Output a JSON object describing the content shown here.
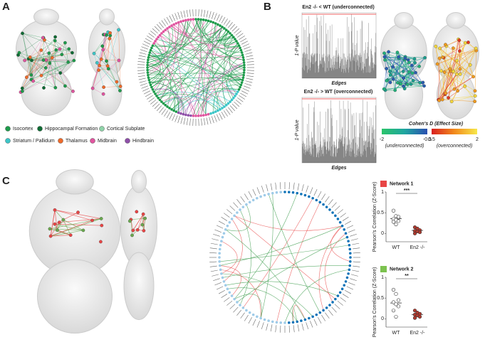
{
  "panel_a": {
    "label": "A",
    "legend": [
      {
        "name": "Isocortex",
        "color": "#1e9b4b"
      },
      {
        "name": "Hippocampal Formation",
        "color": "#0f6b34"
      },
      {
        "name": "Cortical Subplate",
        "color": "#8fd3a8"
      },
      {
        "name": "Striatum / Pallidum",
        "color": "#3cc6c8"
      },
      {
        "name": "Thalamus",
        "color": "#ef6a2a"
      },
      {
        "name": "Midbrain",
        "color": "#e0559f"
      },
      {
        "name": "Hindbrain",
        "color": "#8e4fa8"
      }
    ]
  },
  "panel_b": {
    "label": "B",
    "plots": [
      {
        "title": "En2 -/- < WT (underconnected)",
        "y_label": "1-P value",
        "x_label": "Edges"
      },
      {
        "title": "En2 -/- > WT (overconnected)",
        "y_label": "1-P value",
        "x_label": "Edges"
      }
    ],
    "colorbar": {
      "title": "Cohen's D (Effect Size)",
      "under": {
        "lim": [
          -2,
          -0.5
        ],
        "caption": "(underconnected)"
      },
      "over": {
        "lim": [
          0.5,
          2
        ],
        "caption": "(overconnected)"
      }
    }
  },
  "panel_c": {
    "label": "C",
    "networks": [
      {
        "name": "Network 1",
        "color": "#e84545",
        "significance": "***",
        "y_label": "Pearson's Correlation (Z-Score)",
        "categories": [
          "WT",
          "En2 -/-"
        ],
        "ylim": [
          -0.2,
          1
        ],
        "yticks": [
          0,
          0.5,
          1
        ],
        "groups": [
          [
            0.55,
            0.42,
            0.38,
            0.35,
            0.33,
            0.3,
            0.28,
            0.22,
            0.4
          ],
          [
            0.15,
            0.1,
            0.08,
            0.06,
            0.05,
            0.03,
            0.0,
            0.12
          ]
        ]
      },
      {
        "name": "Network 2",
        "color": "#7cc24f",
        "significance": "**",
        "y_label": "Pearson's Correlation (Z-Score)",
        "categories": [
          "WT",
          "En2 -/-"
        ],
        "ylim": [
          -0.2,
          1
        ],
        "yticks": [
          0,
          0.5,
          1
        ],
        "groups": [
          [
            0.7,
            0.6,
            0.45,
            0.4,
            0.35,
            0.3,
            0.2,
            0.05
          ],
          [
            0.2,
            0.15,
            0.12,
            0.1,
            0.08,
            0.05,
            0.02
          ]
        ]
      }
    ]
  }
}
